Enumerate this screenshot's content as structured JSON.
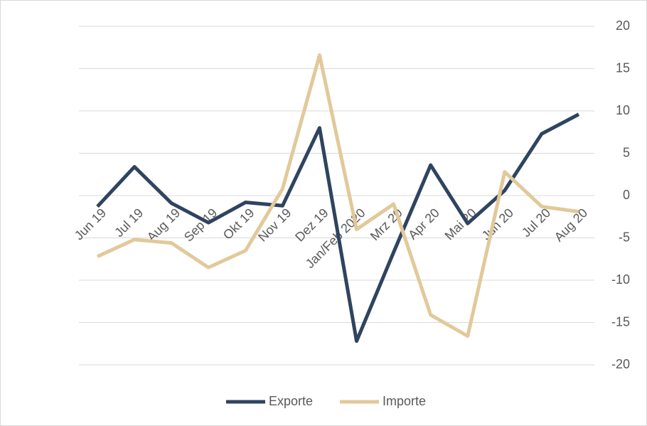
{
  "chart_data": {
    "type": "line",
    "categories": [
      "Jun 19",
      "Jul 19",
      "Aug 19",
      "Sep 19",
      "Okt 19",
      "Nov 19",
      "Dez 19",
      "Jan/Feb 2020",
      "Mrz 20",
      "Apr 20",
      "Mai 20",
      "Jun 20",
      "Jul 20",
      "Aug 20"
    ],
    "series": [
      {
        "name": "Exporte",
        "color": "#2e4460",
        "values": [
          -1.3,
          3.4,
          -0.9,
          -3.2,
          -0.8,
          -1.2,
          8.0,
          -17.2,
          -6.7,
          3.6,
          -3.3,
          0.6,
          7.3,
          9.6
        ]
      },
      {
        "name": "Importe",
        "color": "#e2c99a",
        "values": [
          -7.2,
          -5.2,
          -5.6,
          -8.5,
          -6.5,
          0.8,
          16.6,
          -4.0,
          -1.0,
          -14.1,
          -16.6,
          2.8,
          -1.3,
          -1.9
        ]
      }
    ],
    "ylim": [
      -20,
      20
    ],
    "yticks": [
      -20,
      -15,
      -10,
      -5,
      0,
      5,
      10,
      15,
      20
    ],
    "y_axis_side": "right",
    "grid": true,
    "legend": "bottom"
  }
}
